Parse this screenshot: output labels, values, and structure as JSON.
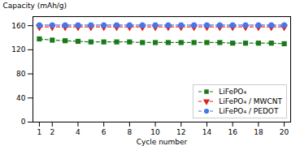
{
  "chart_data": {
    "type": "line",
    "xlabel": "Cycle number",
    "ylabel": "Capacity (mAh/g)",
    "x": [
      1,
      2,
      3,
      4,
      5,
      6,
      7,
      8,
      9,
      10,
      11,
      12,
      13,
      14,
      15,
      16,
      17,
      18,
      19,
      20
    ],
    "series": [
      {
        "name": "LiFePO₄",
        "color": "#1a7a1a",
        "marker": "square",
        "line_style": "dashed",
        "values": [
          138,
          136,
          135,
          134,
          133,
          133,
          133,
          133,
          132,
          132,
          132,
          132,
          132,
          132,
          132,
          131,
          131,
          131,
          131,
          130
        ]
      },
      {
        "name": "LiFePO₄ / MWCNT",
        "color": "#dd2222",
        "marker": "triangle-down",
        "line_style": "dashed",
        "values": [
          158,
          158,
          158,
          158,
          158,
          158,
          158,
          158,
          158,
          158,
          158,
          158,
          158,
          158,
          158,
          158,
          158,
          158,
          158,
          158
        ]
      },
      {
        "name": "LiFePO₄ / PEDOT",
        "color": "#4477ee",
        "marker": "circle",
        "line_style": "dashed",
        "values": [
          161,
          161,
          161,
          161,
          161,
          161,
          161,
          161,
          161,
          161,
          161,
          161,
          161,
          161,
          161,
          161,
          161,
          161,
          161,
          161
        ]
      }
    ],
    "xlim": [
      0.5,
      20.5
    ],
    "xticks": [
      1,
      2,
      4,
      6,
      8,
      10,
      12,
      14,
      16,
      18,
      20
    ],
    "ylim": [
      0,
      175
    ],
    "yticks": [
      0,
      40,
      80,
      120,
      160
    ],
    "grid": false,
    "legend": "lower right"
  }
}
